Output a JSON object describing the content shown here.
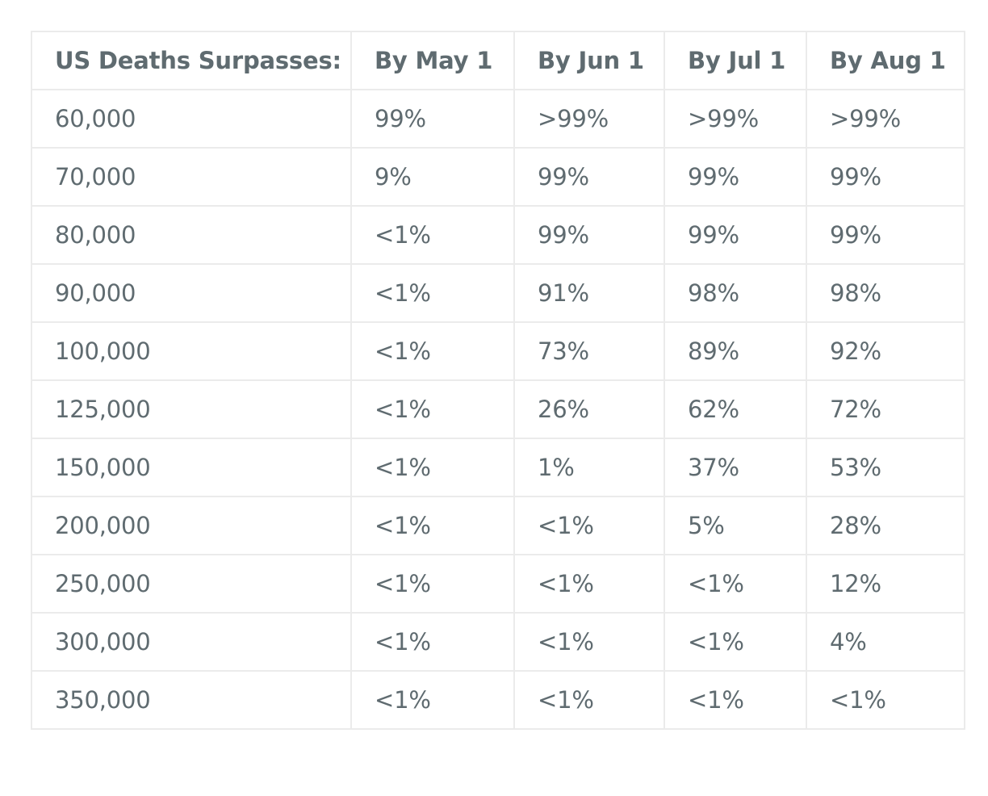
{
  "chart_data": {
    "type": "table",
    "title": "",
    "columns": [
      "US Deaths Surpasses:",
      "By May 1",
      "By Jun 1",
      "By Jul 1",
      "By Aug 1"
    ],
    "rows": [
      [
        "60,000",
        "99%",
        ">99%",
        ">99%",
        ">99%"
      ],
      [
        "70,000",
        "9%",
        "99%",
        "99%",
        "99%"
      ],
      [
        "80,000",
        "<1%",
        "99%",
        "99%",
        "99%"
      ],
      [
        "90,000",
        "<1%",
        "91%",
        "98%",
        "98%"
      ],
      [
        "100,000",
        "<1%",
        "73%",
        "89%",
        "92%"
      ],
      [
        "125,000",
        "<1%",
        "26%",
        "62%",
        "72%"
      ],
      [
        "150,000",
        "<1%",
        "1%",
        "37%",
        "53%"
      ],
      [
        "200,000",
        "<1%",
        "<1%",
        "5%",
        "28%"
      ],
      [
        "250,000",
        "<1%",
        "<1%",
        "<1%",
        "12%"
      ],
      [
        "300,000",
        "<1%",
        "<1%",
        "<1%",
        "4%"
      ],
      [
        "350,000",
        "<1%",
        "<1%",
        "<1%",
        "<1%"
      ]
    ]
  },
  "colors": {
    "text": "#5f6b70",
    "border": "#ebebeb",
    "background": "#ffffff"
  }
}
